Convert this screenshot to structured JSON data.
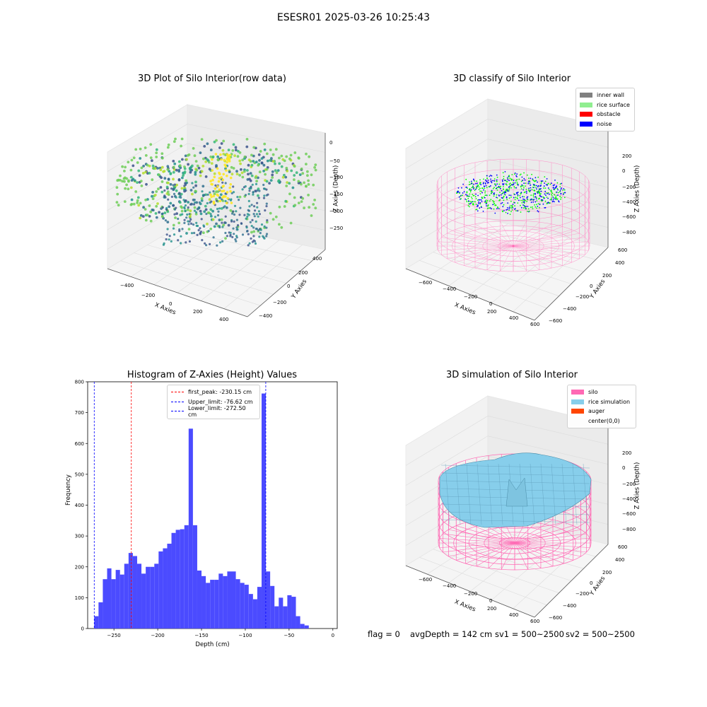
{
  "suptitle": "ESESR01 2025-03-26 10:25:43",
  "panels": {
    "raw": {
      "title": "3D Plot of Silo Interior(row data)",
      "xlabel": "X Axies",
      "ylabel": "Y Axies",
      "zlabel": "Z Axies (Depth)",
      "xticks": [
        "−400",
        "−200",
        "0",
        "200",
        "400"
      ],
      "yticks": [
        "400",
        "200",
        "0",
        "−200",
        "−400"
      ],
      "zticks": [
        "0",
        "−50",
        "−100",
        "−150",
        "−200",
        "−250"
      ]
    },
    "classify": {
      "title": "3D classify of Silo Interior",
      "xlabel": "X Axies",
      "ylabel": "Y Axies",
      "zlabel": "Z Axies (Depth)",
      "xticks": [
        "−600",
        "−400",
        "−200",
        "0",
        "200",
        "400",
        "600"
      ],
      "yticks": [
        "600",
        "400",
        "200",
        "0",
        "−200",
        "−400",
        "−600"
      ],
      "zticks": [
        "200",
        "0",
        "−200",
        "−400",
        "−600",
        "−800"
      ],
      "legend": [
        {
          "label": "inner wall",
          "color": "#808080"
        },
        {
          "label": "rice surface",
          "color": "#90ee90"
        },
        {
          "label": "obstacle",
          "color": "#ff0000"
        },
        {
          "label": "noise",
          "color": "#0000ff"
        }
      ]
    },
    "simulation": {
      "title": "3D simulation of Silo Interior",
      "xlabel": "X Axies",
      "ylabel": "Y Axies",
      "zlabel": "Z Axies (Depth)",
      "xticks": [
        "−600",
        "−400",
        "−200",
        "0",
        "200",
        "400",
        "600"
      ],
      "yticks": [
        "600",
        "400",
        "200",
        "0",
        "−200",
        "−400",
        "−600"
      ],
      "zticks": [
        "200",
        "0",
        "−200",
        "−400",
        "−600",
        "−800"
      ],
      "legend": [
        {
          "label": "silo",
          "color": "#ff69b4"
        },
        {
          "label": "rice simulation",
          "color": "#87ceeb"
        },
        {
          "label": "auger",
          "color": "#ff4500"
        },
        {
          "label": "center(0,0)",
          "color": "transparent"
        }
      ]
    }
  },
  "footer": {
    "flag": "flag = 0",
    "avg": "avgDepth = 142 cm",
    "sv1": "sv1 = 500~2500",
    "sv2": "sv2 = 500~2500"
  },
  "chart_data": {
    "type": "bar",
    "title": "Histogram of Z-Axies (Height) Values",
    "xlabel": "Depth (cm)",
    "ylabel": "Frequency",
    "xlim": [
      -280,
      5
    ],
    "ylim": [
      0,
      800
    ],
    "xticks": [
      -250,
      -200,
      -150,
      -100,
      -50,
      0
    ],
    "yticks": [
      0,
      100,
      200,
      300,
      400,
      500,
      600,
      700,
      800
    ],
    "bin_start": -272.5,
    "bin_width": 4.9,
    "bar_color": "#4b4bff",
    "values": [
      40,
      85,
      160,
      195,
      160,
      190,
      175,
      210,
      245,
      235,
      210,
      178,
      200,
      200,
      210,
      250,
      260,
      275,
      310,
      320,
      322,
      335,
      648,
      335,
      188,
      170,
      148,
      158,
      158,
      178,
      170,
      185,
      185,
      160,
      148,
      142,
      112,
      95,
      135,
      762,
      185,
      138,
      72,
      100,
      72,
      108,
      103,
      40,
      15,
      10
    ],
    "lines": [
      {
        "label": "first_peak: -230.15 cm",
        "x": -230.15,
        "color": "#ff0000"
      },
      {
        "label": "Upper_limit: -76.62 cm",
        "x": -76.62,
        "color": "#0000ff"
      },
      {
        "label": "Lower_limit: -272.50 cm",
        "x": -272.5,
        "color": "#0000ff"
      }
    ]
  }
}
